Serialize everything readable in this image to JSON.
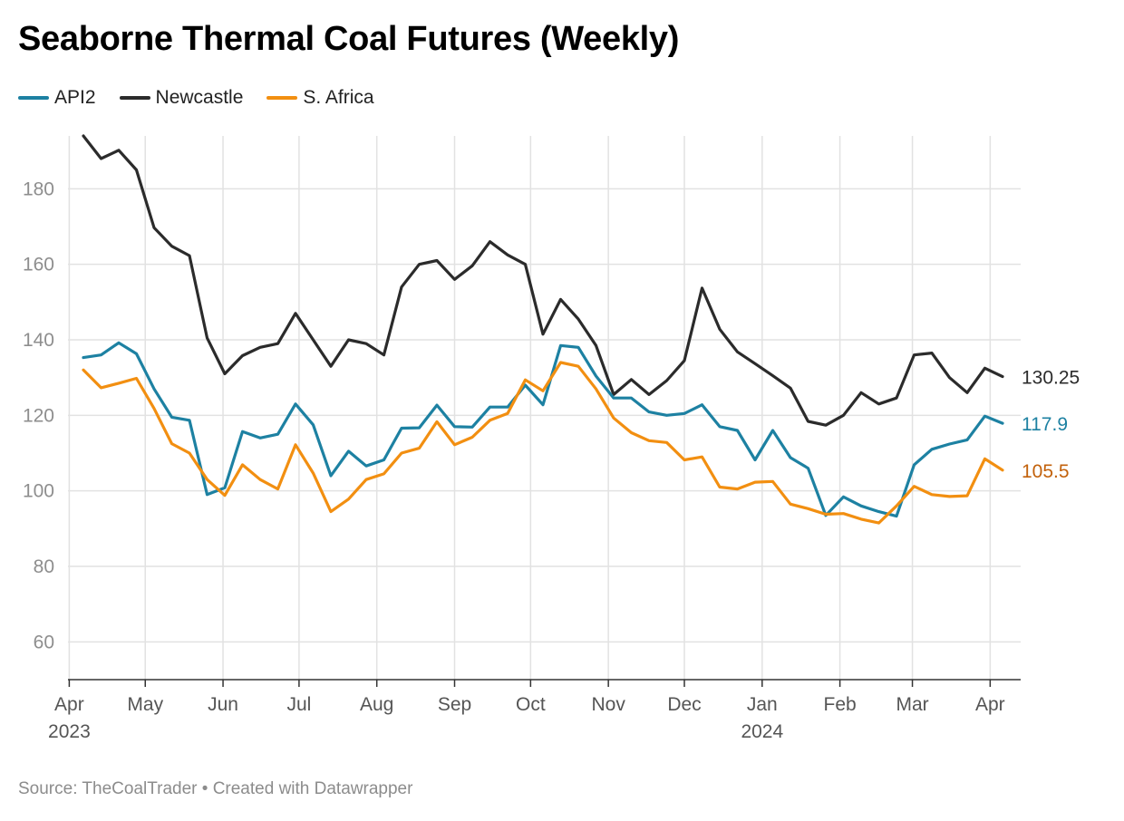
{
  "title": "Seaborne Thermal Coal Futures (Weekly)",
  "source": "Source: TheCoalTrader • Created with Datawrapper",
  "colors": {
    "API2": "#1d81a2",
    "Newcastle": "#2b2b2b",
    "S. Africa": "#f28f11",
    "S. Africa label": "#c2610b"
  },
  "chart_data": {
    "type": "line",
    "title": "Seaborne Thermal Coal Futures (Weekly)",
    "ylim": [
      50,
      194
    ],
    "yticks": [
      60,
      80,
      100,
      120,
      140,
      160,
      180
    ],
    "xticks": [
      {
        "label": "Apr",
        "year": "2023",
        "week": -0.8
      },
      {
        "label": "May",
        "year": "",
        "week": 3.5
      },
      {
        "label": "Jun",
        "year": "",
        "week": 7.9
      },
      {
        "label": "Jul",
        "year": "",
        "week": 12.2
      },
      {
        "label": "Aug",
        "year": "",
        "week": 16.6
      },
      {
        "label": "Sep",
        "year": "",
        "week": 21.0
      },
      {
        "label": "Oct",
        "year": "",
        "week": 25.3
      },
      {
        "label": "Nov",
        "year": "",
        "week": 29.7
      },
      {
        "label": "Dec",
        "year": "",
        "week": 34.0
      },
      {
        "label": "Jan",
        "year": "2024",
        "week": 38.4
      },
      {
        "label": "Feb",
        "year": "",
        "week": 42.8
      },
      {
        "label": "Mar",
        "year": "",
        "week": 46.9
      },
      {
        "label": "Apr",
        "year": "",
        "week": 51.3
      }
    ],
    "x": [
      "2023-04-07",
      "2023-04-14",
      "2023-04-21",
      "2023-04-28",
      "2023-05-05",
      "2023-05-12",
      "2023-05-19",
      "2023-05-26",
      "2023-06-02",
      "2023-06-09",
      "2023-06-16",
      "2023-06-23",
      "2023-06-30",
      "2023-07-07",
      "2023-07-14",
      "2023-07-21",
      "2023-07-28",
      "2023-08-04",
      "2023-08-11",
      "2023-08-18",
      "2023-08-25",
      "2023-09-01",
      "2023-09-08",
      "2023-09-15",
      "2023-09-22",
      "2023-09-29",
      "2023-10-06",
      "2023-10-13",
      "2023-10-20",
      "2023-10-27",
      "2023-11-03",
      "2023-11-10",
      "2023-11-17",
      "2023-11-24",
      "2023-12-01",
      "2023-12-08",
      "2023-12-15",
      "2023-12-22",
      "2023-12-29",
      "2024-01-05",
      "2024-01-12",
      "2024-01-19",
      "2024-01-26",
      "2024-02-02",
      "2024-02-09",
      "2024-02-16",
      "2024-02-23",
      "2024-03-01",
      "2024-03-08",
      "2024-03-15",
      "2024-03-22",
      "2024-03-29",
      "2024-04-05"
    ],
    "series": [
      {
        "name": "Newcastle",
        "end_label": "130.25",
        "values": [
          194,
          188,
          190.2,
          185,
          169.7,
          164.8,
          162.3,
          140.5,
          131,
          135.8,
          138,
          139,
          147,
          140,
          133,
          140,
          139,
          136,
          154,
          160,
          161,
          156,
          159.6,
          166,
          162.5,
          160,
          141.5,
          150.7,
          145.5,
          138.5,
          125.5,
          129.5,
          125.5,
          129.2,
          134.5,
          153.7,
          142.8,
          136.8,
          133.7,
          130.5,
          127.2,
          118.4,
          117.4,
          120,
          126,
          123,
          124.6,
          136,
          136.5,
          130,
          126,
          132.5,
          130.25
        ]
      },
      {
        "name": "API2",
        "end_label": "117.9",
        "values": [
          135.3,
          136,
          139.2,
          136.3,
          127,
          119.5,
          118.7,
          99,
          100.8,
          115.7,
          114,
          115,
          123,
          117.5,
          104,
          110.5,
          106.6,
          108.2,
          116.6,
          116.7,
          122.7,
          117,
          116.9,
          122.2,
          122.2,
          128,
          122.8,
          138.5,
          138,
          130.4,
          124.6,
          124.6,
          120.9,
          120,
          120.5,
          122.8,
          117,
          116,
          108.2,
          116,
          108.8,
          106,
          93.5,
          98.4,
          96,
          94.5,
          93.3,
          106.9,
          111,
          112.4,
          113.5,
          119.8,
          117.9
        ]
      },
      {
        "name": "S. Africa",
        "end_label": "105.5",
        "values": [
          132,
          127.3,
          128.5,
          129.8,
          121.8,
          112.5,
          110,
          103,
          98.8,
          106.9,
          103,
          100.5,
          112.2,
          104.7,
          94.5,
          97.8,
          103,
          104.5,
          110,
          111.3,
          118.3,
          112.2,
          114.2,
          118.7,
          120.5,
          129.4,
          126.5,
          134,
          133,
          127,
          119.3,
          115.4,
          113.3,
          112.8,
          108.2,
          109,
          101,
          100.5,
          102.3,
          102.5,
          96.5,
          95.3,
          93.8,
          94,
          92.5,
          91.5,
          96,
          101.2,
          99,
          98.5,
          98.7,
          108.5,
          105.5
        ]
      }
    ],
    "legend": {
      "position": "top-left",
      "entries": [
        "API2",
        "Newcastle",
        "S. Africa"
      ]
    },
    "grid": true
  }
}
